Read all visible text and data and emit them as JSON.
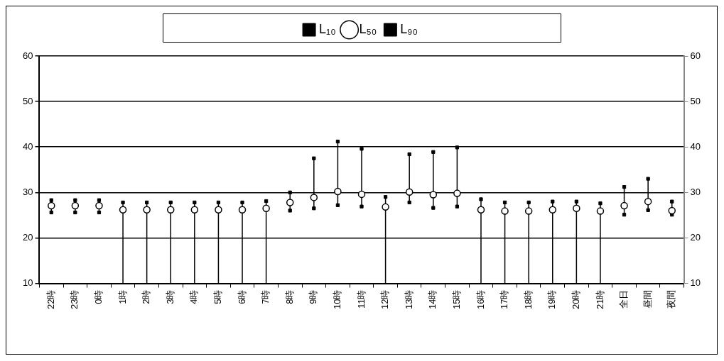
{
  "chart_data": {
    "type": "scatter",
    "categories": [
      "22時",
      "23時",
      "0時",
      "1時",
      "2時",
      "3時",
      "4時",
      "5時",
      "6時",
      "7時",
      "8時",
      "9時",
      "10時",
      "11時",
      "12時",
      "13時",
      "14時",
      "15時",
      "16時",
      "17時",
      "18時",
      "19時",
      "20時",
      "21時",
      "全日",
      "昼間",
      "夜間"
    ],
    "series": [
      {
        "name": "L₁₀",
        "color": "#000000",
        "marker": "square",
        "values": [
          28.3,
          28.3,
          28.3,
          27.8,
          27.8,
          27.8,
          27.8,
          27.8,
          27.8,
          28.1,
          30.0,
          37.5,
          41.2,
          39.6,
          29.0,
          38.4,
          38.9,
          39.9,
          28.5,
          27.8,
          27.8,
          28.0,
          28.0,
          27.6,
          31.2,
          33.0,
          28.0
        ]
      },
      {
        "name": "L₅₀",
        "color": "#000000",
        "marker": "circle",
        "values": [
          27.1,
          27.1,
          27.1,
          26.2,
          26.2,
          26.2,
          26.2,
          26.2,
          26.2,
          26.5,
          27.8,
          28.9,
          30.2,
          29.6,
          26.8,
          30.1,
          29.5,
          29.8,
          26.2,
          25.9,
          25.9,
          26.2,
          26.5,
          25.9,
          27.1,
          28.0,
          26.0
        ]
      },
      {
        "name": "L₉₀",
        "color": "#000000",
        "marker": "square",
        "values": [
          25.6,
          25.6,
          25.6,
          null,
          null,
          null,
          null,
          null,
          null,
          null,
          26.0,
          26.5,
          27.2,
          26.9,
          null,
          27.8,
          26.6,
          26.9,
          null,
          null,
          null,
          null,
          null,
          null,
          25.1,
          26.1,
          25.1
        ]
      }
    ],
    "ylim": [
      10,
      60
    ],
    "yticks": [
      10,
      20,
      30,
      40,
      50,
      60
    ],
    "y2lim": [
      10,
      60
    ],
    "y2ticks": [
      10,
      20,
      30,
      40,
      50,
      60
    ],
    "grid": "y",
    "legend": "top"
  }
}
